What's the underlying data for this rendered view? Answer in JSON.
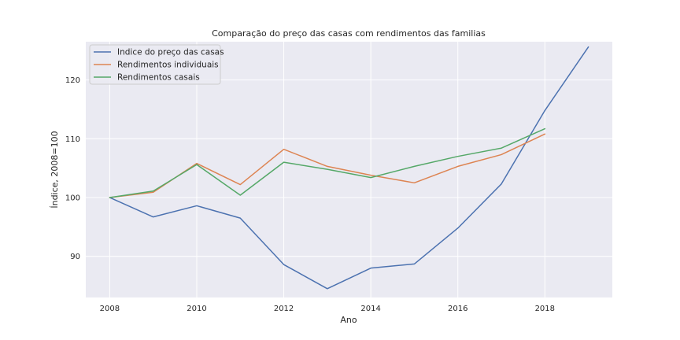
{
  "chart_data": {
    "type": "line",
    "title": "Comparação do preço das casas com rendimentos das familias",
    "xlabel": "Ano",
    "ylabel": "Índice, 2008=100",
    "xlim": [
      2007.45,
      2019.55
    ],
    "ylim": [
      83.0,
      126.5
    ],
    "x_ticks": [
      2008,
      2010,
      2012,
      2014,
      2016,
      2018
    ],
    "y_ticks": [
      90,
      100,
      110,
      120
    ],
    "grid": true,
    "legend_position": "top-left",
    "background_color": "#eaeaf2",
    "grid_color": "#ffffff",
    "series": [
      {
        "name": "Indice do preço das casas",
        "color": "#4c72b0",
        "x": [
          2008,
          2009,
          2010,
          2011,
          2012,
          2013,
          2014,
          2015,
          2016,
          2017,
          2018,
          2019
        ],
        "values": [
          100.0,
          96.7,
          98.6,
          96.5,
          88.6,
          84.5,
          88.0,
          88.7,
          94.8,
          102.3,
          114.8,
          125.6
        ]
      },
      {
        "name": "Rendimentos individuais",
        "color": "#dd8452",
        "x": [
          2008,
          2009,
          2010,
          2011,
          2012,
          2013,
          2014,
          2015,
          2016,
          2017,
          2018
        ],
        "values": [
          100.0,
          100.9,
          105.8,
          102.2,
          108.2,
          105.3,
          103.8,
          102.5,
          105.3,
          107.3,
          110.8
        ]
      },
      {
        "name": "Rendimentos casais",
        "color": "#55a868",
        "x": [
          2008,
          2009,
          2010,
          2011,
          2012,
          2013,
          2014,
          2015,
          2016,
          2017,
          2018
        ],
        "values": [
          100.0,
          101.1,
          105.6,
          100.4,
          106.0,
          104.8,
          103.4,
          105.3,
          107.0,
          108.4,
          111.7
        ]
      }
    ]
  }
}
